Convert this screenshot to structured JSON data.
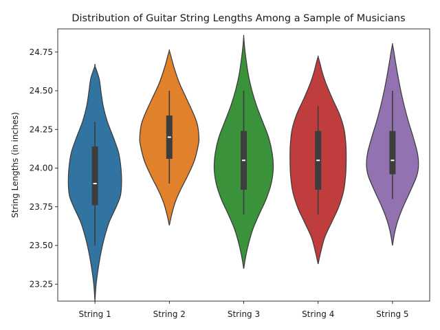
{
  "chart_data": {
    "type": "violin",
    "title": "Distribution of Guitar String Lengths Among a Sample of Musicians",
    "xlabel": "",
    "ylabel": "String Lengths (in inches)",
    "ylim": [
      23.14,
      24.9
    ],
    "yticks": [
      23.25,
      23.5,
      23.75,
      24.0,
      24.25,
      24.5,
      24.75
    ],
    "ytick_labels": [
      "23.25",
      "23.50",
      "23.75",
      "24.00",
      "24.25",
      "24.50",
      "24.75"
    ],
    "grid": false,
    "categories": [
      "String 1",
      "String 2",
      "String 3",
      "String 4",
      "String 5"
    ],
    "series": [
      {
        "category": "String 1",
        "color": "#3274a1",
        "min": 23.5,
        "q1": 23.76,
        "median": 23.9,
        "q3": 24.14,
        "max": 24.3,
        "kde_min": 23.14,
        "kde_max": 24.66,
        "kde": [
          [
            23.14,
            0.0
          ],
          [
            23.25,
            0.04
          ],
          [
            23.35,
            0.11
          ],
          [
            23.45,
            0.2
          ],
          [
            23.55,
            0.32
          ],
          [
            23.65,
            0.48
          ],
          [
            23.75,
            0.72
          ],
          [
            23.82,
            0.86
          ],
          [
            23.9,
            0.9
          ],
          [
            24.0,
            0.88
          ],
          [
            24.1,
            0.8
          ],
          [
            24.2,
            0.62
          ],
          [
            24.3,
            0.42
          ],
          [
            24.4,
            0.28
          ],
          [
            24.5,
            0.2
          ],
          [
            24.58,
            0.14
          ],
          [
            24.66,
            0.0
          ]
        ]
      },
      {
        "category": "String 2",
        "color": "#e1812c",
        "min": 23.9,
        "q1": 24.06,
        "median": 24.2,
        "q3": 24.34,
        "max": 24.5,
        "kde_min": 23.63,
        "kde_max": 24.76,
        "kde": [
          [
            23.63,
            0.0
          ],
          [
            23.7,
            0.08
          ],
          [
            23.78,
            0.2
          ],
          [
            23.86,
            0.38
          ],
          [
            23.95,
            0.62
          ],
          [
            24.05,
            0.85
          ],
          [
            24.15,
            0.98
          ],
          [
            24.2,
            1.0
          ],
          [
            24.28,
            0.95
          ],
          [
            24.35,
            0.82
          ],
          [
            24.45,
            0.58
          ],
          [
            24.55,
            0.34
          ],
          [
            24.65,
            0.16
          ],
          [
            24.72,
            0.06
          ],
          [
            24.76,
            0.0
          ]
        ]
      },
      {
        "category": "String 3",
        "color": "#3a923a",
        "min": 23.7,
        "q1": 23.86,
        "median": 24.05,
        "q3": 24.24,
        "max": 24.5,
        "kde_min": 23.35,
        "kde_max": 24.85,
        "kde": [
          [
            23.35,
            0.0
          ],
          [
            23.42,
            0.06
          ],
          [
            23.5,
            0.15
          ],
          [
            23.6,
            0.3
          ],
          [
            23.7,
            0.52
          ],
          [
            23.8,
            0.76
          ],
          [
            23.9,
            0.93
          ],
          [
            24.0,
            1.0
          ],
          [
            24.1,
            0.96
          ],
          [
            24.2,
            0.84
          ],
          [
            24.3,
            0.64
          ],
          [
            24.4,
            0.44
          ],
          [
            24.5,
            0.28
          ],
          [
            24.6,
            0.16
          ],
          [
            24.7,
            0.08
          ],
          [
            24.78,
            0.03
          ],
          [
            24.85,
            0.0
          ]
        ]
      },
      {
        "category": "String 4",
        "color": "#c03d3e",
        "min": 23.7,
        "q1": 23.86,
        "median": 24.05,
        "q3": 24.24,
        "max": 24.4,
        "kde_min": 23.38,
        "kde_max": 24.72,
        "kde": [
          [
            23.38,
            0.0
          ],
          [
            23.45,
            0.08
          ],
          [
            23.55,
            0.22
          ],
          [
            23.65,
            0.46
          ],
          [
            23.75,
            0.7
          ],
          [
            23.85,
            0.86
          ],
          [
            23.95,
            0.93
          ],
          [
            24.05,
            0.95
          ],
          [
            24.15,
            0.94
          ],
          [
            24.25,
            0.88
          ],
          [
            24.35,
            0.72
          ],
          [
            24.45,
            0.48
          ],
          [
            24.55,
            0.26
          ],
          [
            24.62,
            0.14
          ],
          [
            24.68,
            0.06
          ],
          [
            24.72,
            0.0
          ]
        ]
      },
      {
        "category": "String 5",
        "color": "#9372b2",
        "min": 23.8,
        "q1": 23.96,
        "median": 24.05,
        "q3": 24.24,
        "max": 24.5,
        "kde_min": 23.5,
        "kde_max": 24.8,
        "kde": [
          [
            23.5,
            0.0
          ],
          [
            23.58,
            0.07
          ],
          [
            23.66,
            0.18
          ],
          [
            23.75,
            0.36
          ],
          [
            23.85,
            0.6
          ],
          [
            23.95,
            0.82
          ],
          [
            24.02,
            0.88
          ],
          [
            24.1,
            0.84
          ],
          [
            24.2,
            0.7
          ],
          [
            24.3,
            0.54
          ],
          [
            24.4,
            0.4
          ],
          [
            24.5,
            0.28
          ],
          [
            24.6,
            0.18
          ],
          [
            24.7,
            0.09
          ],
          [
            24.76,
            0.04
          ],
          [
            24.8,
            0.0
          ]
        ]
      }
    ]
  }
}
